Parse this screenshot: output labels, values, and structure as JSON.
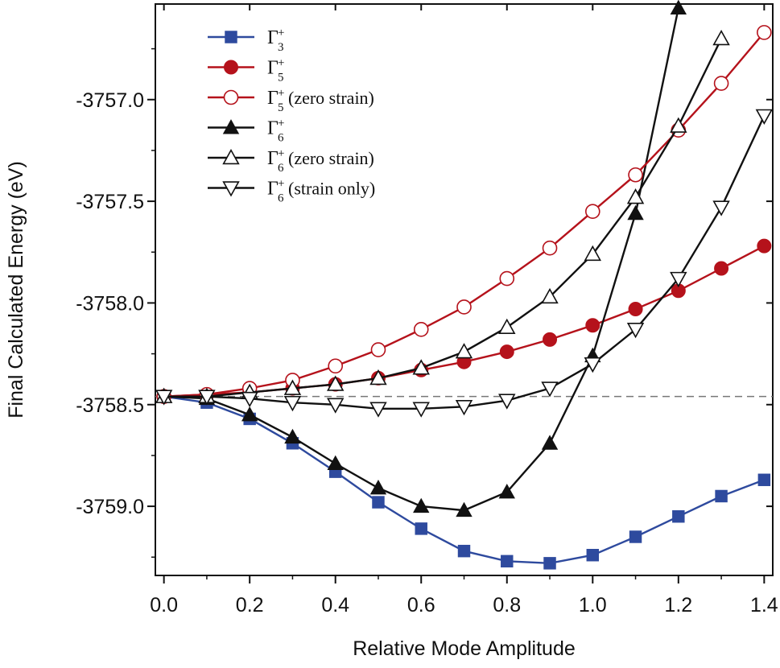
{
  "chart_data": {
    "type": "line",
    "xlabel": "Relative Mode Amplitude",
    "ylabel": "Final Calculated Energy (eV)",
    "xlim": [
      -0.02,
      1.42
    ],
    "ylim": [
      -3759.34,
      -3756.53
    ],
    "xticks": [
      "0.0",
      "0.2",
      "0.4",
      "0.6",
      "0.8",
      "1.0",
      "1.2",
      "1.4"
    ],
    "yticks": [
      "-3757.0",
      "-3757.5",
      "-3758.0",
      "-3758.5",
      "-3759.0"
    ],
    "grid": false,
    "legend_position": "top-left",
    "reference_line": {
      "y": -3758.46,
      "style": "dashed"
    },
    "series": [
      {
        "name": "Γ3+",
        "legend": {
          "sub": "3",
          "sup": "+",
          "suffix": ""
        },
        "color": "#2e4a9e",
        "marker": "square",
        "filled": true,
        "x": [
          0.0,
          0.1,
          0.2,
          0.3,
          0.4,
          0.5,
          0.6,
          0.7,
          0.8,
          0.9,
          1.0,
          1.1,
          1.2,
          1.3,
          1.4
        ],
        "y": [
          -3758.46,
          -3758.49,
          -3758.57,
          -3758.69,
          -3758.83,
          -3758.98,
          -3759.11,
          -3759.22,
          -3759.27,
          -3759.28,
          -3759.24,
          -3759.15,
          -3759.05,
          -3758.95,
          -3758.87
        ]
      },
      {
        "name": "Γ5+",
        "legend": {
          "sub": "5",
          "sup": "+",
          "suffix": ""
        },
        "color": "#b5121b",
        "marker": "circle",
        "filled": true,
        "x": [
          0.0,
          0.1,
          0.2,
          0.3,
          0.4,
          0.5,
          0.6,
          0.7,
          0.8,
          0.9,
          1.0,
          1.1,
          1.2,
          1.3,
          1.4
        ],
        "y": [
          -3758.46,
          -3758.45,
          -3758.44,
          -3758.42,
          -3758.4,
          -3758.37,
          -3758.33,
          -3758.29,
          -3758.24,
          -3758.18,
          -3758.11,
          -3758.03,
          -3757.94,
          -3757.83,
          -3757.72
        ]
      },
      {
        "name": "Γ5+ (zero strain)",
        "legend": {
          "sub": "5",
          "sup": "+",
          "suffix": "(zero strain)"
        },
        "color": "#b5121b",
        "marker": "circle",
        "filled": false,
        "x": [
          0.0,
          0.1,
          0.2,
          0.3,
          0.4,
          0.5,
          0.6,
          0.7,
          0.8,
          0.9,
          1.0,
          1.1,
          1.2,
          1.3,
          1.4
        ],
        "y": [
          -3758.46,
          -3758.45,
          -3758.42,
          -3758.38,
          -3758.31,
          -3758.23,
          -3758.13,
          -3758.02,
          -3757.88,
          -3757.73,
          -3757.55,
          -3757.37,
          -3757.15,
          -3756.92,
          -3756.67
        ]
      },
      {
        "name": "Γ6+",
        "legend": {
          "sub": "6",
          "sup": "+",
          "suffix": ""
        },
        "color": "#111111",
        "marker": "triangle-up",
        "filled": true,
        "x": [
          0.0,
          0.1,
          0.2,
          0.3,
          0.4,
          0.5,
          0.6,
          0.7,
          0.8,
          0.9,
          1.0,
          1.1,
          1.2
        ],
        "y": [
          -3758.46,
          -3758.47,
          -3758.55,
          -3758.66,
          -3758.79,
          -3758.91,
          -3759.0,
          -3759.02,
          -3758.93,
          -3758.69,
          -3758.26,
          -3757.56,
          -3756.55
        ]
      },
      {
        "name": "Γ6+ (zero strain)",
        "legend": {
          "sub": "6",
          "sup": "+",
          "suffix": "(zero strain)"
        },
        "color": "#111111",
        "marker": "triangle-up",
        "filled": false,
        "x": [
          0.0,
          0.1,
          0.2,
          0.3,
          0.4,
          0.5,
          0.6,
          0.7,
          0.8,
          0.9,
          1.0,
          1.1,
          1.2,
          1.3
        ],
        "y": [
          -3758.46,
          -3758.46,
          -3758.44,
          -3758.42,
          -3758.4,
          -3758.37,
          -3758.32,
          -3758.24,
          -3758.12,
          -3757.97,
          -3757.76,
          -3757.48,
          -3757.13,
          -3756.7
        ]
      },
      {
        "name": "Γ6+ (strain only)",
        "legend": {
          "sub": "6",
          "sup": "+",
          "suffix": "(strain only)"
        },
        "color": "#111111",
        "marker": "triangle-down",
        "filled": false,
        "x": [
          0.0,
          0.1,
          0.2,
          0.3,
          0.4,
          0.5,
          0.6,
          0.7,
          0.8,
          0.9,
          1.0,
          1.1,
          1.2,
          1.3,
          1.4
        ],
        "y": [
          -3758.46,
          -3758.46,
          -3758.47,
          -3758.49,
          -3758.5,
          -3758.52,
          -3758.52,
          -3758.51,
          -3758.48,
          -3758.42,
          -3758.3,
          -3758.13,
          -3757.88,
          -3757.53,
          -3757.08
        ]
      }
    ]
  }
}
